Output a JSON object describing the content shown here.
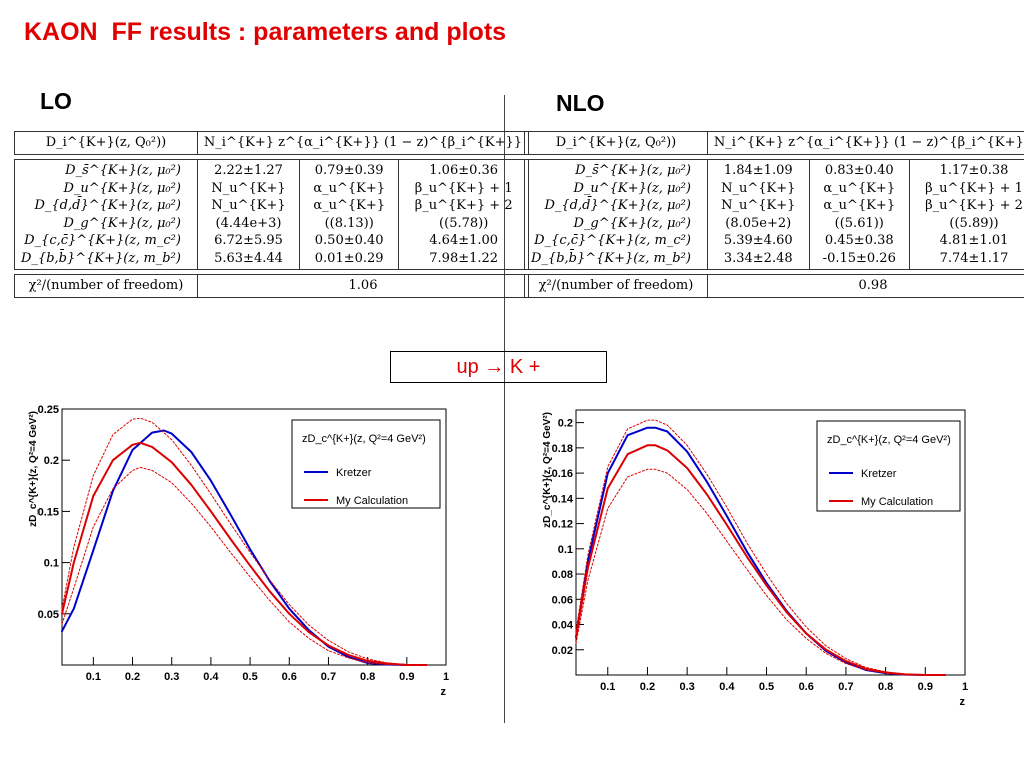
{
  "title": "KAON  FF results : parameters and plots",
  "lo_label": "LO",
  "nlo_label": "NLO",
  "process_label": "up → K +",
  "tables": {
    "header_left": "D_i^{K+}(z, Q₀²))",
    "header_right": "N_i^{K+} z^{α_i^{K+}} (1 − z)^{β_i^{K+}}",
    "chi2_label": "χ²/(number of freedom)",
    "functions": [
      "D_s̄^{K+}(z, μ₀²)",
      "D_u^{K+}(z, μ₀²)",
      "D_{d,d̄}^{K+}(z, μ₀²)",
      "D_g^{K+}(z, μ₀²)",
      "D_{c,c̄}^{K+}(z, m_c²)",
      "D_{b,b̄}^{K+}(z, m_b²)"
    ],
    "lo": {
      "N": [
        "2.22±1.27",
        "N_u^{K+}",
        "N_u^{K+}",
        "(4.44e+3)",
        "6.72±5.95",
        "5.63±4.44"
      ],
      "alpha": [
        "0.79±0.39",
        "α_u^{K+}",
        "α_u^{K+}",
        "((8.13))",
        "0.50±0.40",
        "0.01±0.29"
      ],
      "beta": [
        "1.06±0.36",
        "β_u^{K+} + 1",
        "β_u^{K+} + 2",
        "((5.78))",
        "4.64±1.00",
        "7.98±1.22"
      ],
      "chi2": "1.06"
    },
    "nlo": {
      "N": [
        "1.84±1.09",
        "N_u^{K+}",
        "N_u^{K+}",
        "(8.05e+2)",
        "5.39±4.60",
        "3.34±2.48"
      ],
      "alpha": [
        "0.83±0.40",
        "α_u^{K+}",
        "α_u^{K+}",
        "((5.61))",
        "0.45±0.38",
        "-0.15±0.26"
      ],
      "beta": [
        "1.17±0.38",
        "β_u^{K+} + 1",
        "β_u^{K+} + 2",
        "((5.89))",
        "4.81±1.01",
        "7.74±1.17"
      ],
      "chi2": "0.98"
    }
  },
  "colors": {
    "title": "#e00000",
    "kretzer": "#0000cc",
    "my_calc": "#dd0000"
  },
  "chart_data": [
    {
      "type": "line",
      "panel": "LO",
      "xlabel": "z",
      "ylabel": "zD_c^{K+}(z, Q²=4 GeV²)",
      "xlim": [
        0.02,
        1.0
      ],
      "ylim": [
        0.0,
        0.25
      ],
      "xticks": [
        0.1,
        0.2,
        0.3,
        0.4,
        0.5,
        0.6,
        0.7,
        0.8,
        0.9,
        1
      ],
      "yticks": [
        0.05,
        0.1,
        0.15,
        0.2,
        0.25
      ],
      "legend_title": "zD_c^{K+}(z, Q²=4 GeV²)",
      "legend_position": "top-right",
      "series": [
        {
          "name": "Kretzer",
          "x": [
            0.02,
            0.05,
            0.1,
            0.15,
            0.2,
            0.25,
            0.28,
            0.3,
            0.35,
            0.4,
            0.45,
            0.5,
            0.55,
            0.6,
            0.65,
            0.7,
            0.75,
            0.8,
            0.85,
            0.9,
            0.95
          ],
          "y": [
            0.033,
            0.055,
            0.112,
            0.17,
            0.21,
            0.227,
            0.229,
            0.226,
            0.208,
            0.18,
            0.147,
            0.113,
            0.082,
            0.055,
            0.034,
            0.018,
            0.008,
            0.002,
            0.0005,
            0.0,
            0.0
          ]
        },
        {
          "name": "My Calculation",
          "x": [
            0.02,
            0.05,
            0.1,
            0.15,
            0.2,
            0.22,
            0.25,
            0.3,
            0.35,
            0.4,
            0.45,
            0.5,
            0.55,
            0.6,
            0.65,
            0.7,
            0.75,
            0.8,
            0.85,
            0.9,
            0.95
          ],
          "y": [
            0.05,
            0.1,
            0.165,
            0.2,
            0.215,
            0.217,
            0.213,
            0.198,
            0.176,
            0.15,
            0.123,
            0.097,
            0.072,
            0.05,
            0.032,
            0.019,
            0.01,
            0.004,
            0.0015,
            0.0,
            0.0
          ]
        },
        {
          "name": "upper band",
          "x": [
            0.02,
            0.05,
            0.1,
            0.15,
            0.2,
            0.22,
            0.25,
            0.3,
            0.35,
            0.4,
            0.45,
            0.5,
            0.55,
            0.6,
            0.65,
            0.7,
            0.75,
            0.8,
            0.85,
            0.9,
            0.95
          ],
          "y": [
            0.055,
            0.115,
            0.185,
            0.225,
            0.24,
            0.241,
            0.237,
            0.22,
            0.195,
            0.167,
            0.138,
            0.11,
            0.083,
            0.059,
            0.039,
            0.024,
            0.013,
            0.006,
            0.002,
            0.0005,
            0.0
          ]
        },
        {
          "name": "lower band",
          "x": [
            0.02,
            0.05,
            0.1,
            0.15,
            0.2,
            0.22,
            0.25,
            0.3,
            0.35,
            0.4,
            0.45,
            0.5,
            0.55,
            0.6,
            0.65,
            0.7,
            0.75,
            0.8,
            0.85,
            0.9,
            0.95
          ],
          "y": [
            0.04,
            0.075,
            0.135,
            0.172,
            0.19,
            0.193,
            0.19,
            0.178,
            0.158,
            0.135,
            0.11,
            0.086,
            0.063,
            0.042,
            0.026,
            0.014,
            0.007,
            0.002,
            0.0005,
            0.0,
            0.0
          ]
        }
      ]
    },
    {
      "type": "line",
      "panel": "NLO",
      "xlabel": "z",
      "ylabel": "zD_c^{K+}(z, Q²=4 GeV²)",
      "xlim": [
        0.02,
        1.0
      ],
      "ylim": [
        0.0,
        0.21
      ],
      "xticks": [
        0.1,
        0.2,
        0.3,
        0.4,
        0.5,
        0.6,
        0.7,
        0.8,
        0.9,
        1
      ],
      "yticks": [
        0.02,
        0.04,
        0.06,
        0.08,
        0.1,
        0.12,
        0.14,
        0.16,
        0.18,
        0.2
      ],
      "legend_title": "zD_c^{K+}(z, Q²=4 GeV²)",
      "legend_position": "top-right",
      "series": [
        {
          "name": "Kretzer",
          "x": [
            0.02,
            0.05,
            0.1,
            0.15,
            0.2,
            0.22,
            0.25,
            0.3,
            0.35,
            0.4,
            0.45,
            0.5,
            0.55,
            0.6,
            0.65,
            0.7,
            0.75,
            0.8,
            0.85,
            0.9,
            0.95
          ],
          "y": [
            0.03,
            0.09,
            0.16,
            0.19,
            0.196,
            0.196,
            0.193,
            0.177,
            0.153,
            0.126,
            0.098,
            0.073,
            0.051,
            0.033,
            0.019,
            0.01,
            0.004,
            0.0015,
            0.0003,
            0.0,
            0.0
          ]
        },
        {
          "name": "My Calculation",
          "x": [
            0.02,
            0.05,
            0.1,
            0.15,
            0.2,
            0.22,
            0.25,
            0.3,
            0.35,
            0.4,
            0.45,
            0.5,
            0.55,
            0.6,
            0.65,
            0.7,
            0.75,
            0.8,
            0.85,
            0.9,
            0.95
          ],
          "y": [
            0.03,
            0.085,
            0.148,
            0.175,
            0.182,
            0.182,
            0.178,
            0.164,
            0.143,
            0.119,
            0.094,
            0.071,
            0.05,
            0.033,
            0.02,
            0.011,
            0.005,
            0.002,
            0.0005,
            0.0,
            0.0
          ]
        },
        {
          "name": "upper band",
          "x": [
            0.02,
            0.05,
            0.1,
            0.15,
            0.2,
            0.22,
            0.25,
            0.3,
            0.35,
            0.4,
            0.45,
            0.5,
            0.55,
            0.6,
            0.65,
            0.7,
            0.75,
            0.8,
            0.85,
            0.9,
            0.95
          ],
          "y": [
            0.035,
            0.095,
            0.165,
            0.195,
            0.202,
            0.202,
            0.198,
            0.182,
            0.159,
            0.133,
            0.105,
            0.08,
            0.057,
            0.038,
            0.023,
            0.013,
            0.006,
            0.0025,
            0.0007,
            0.0,
            0.0
          ]
        },
        {
          "name": "lower band",
          "x": [
            0.02,
            0.05,
            0.1,
            0.15,
            0.2,
            0.22,
            0.25,
            0.3,
            0.35,
            0.4,
            0.45,
            0.5,
            0.55,
            0.6,
            0.65,
            0.7,
            0.75,
            0.8,
            0.85,
            0.9,
            0.95
          ],
          "y": [
            0.025,
            0.075,
            0.132,
            0.157,
            0.163,
            0.163,
            0.16,
            0.147,
            0.128,
            0.106,
            0.084,
            0.063,
            0.044,
            0.029,
            0.017,
            0.009,
            0.004,
            0.0015,
            0.0003,
            0.0,
            0.0
          ]
        }
      ]
    }
  ]
}
